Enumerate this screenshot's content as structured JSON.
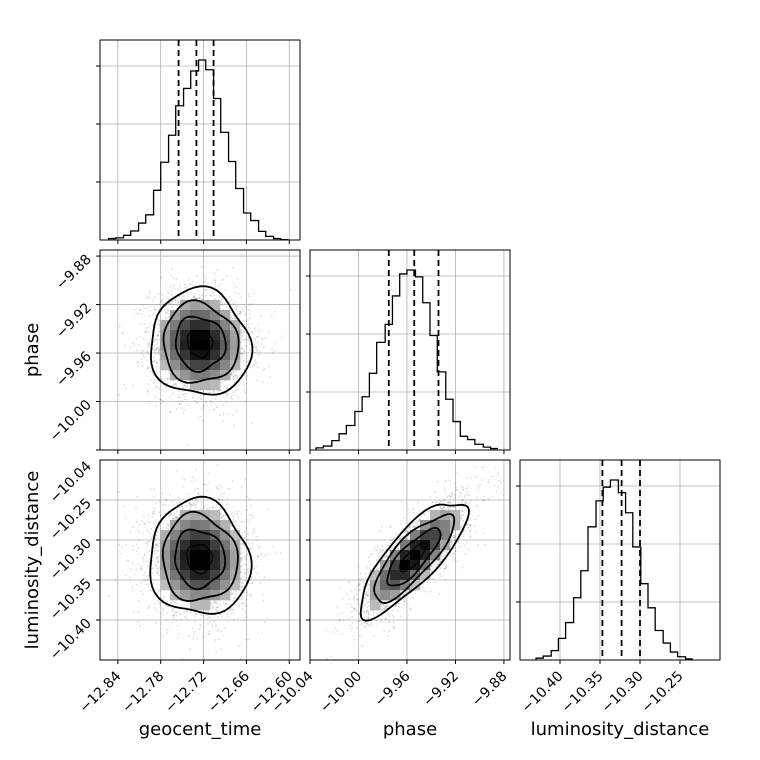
{
  "chart_data": {
    "type": "corner",
    "parameters": [
      "geocent_time",
      "phase",
      "luminosity_distance"
    ],
    "grid": true,
    "colors": {
      "line": "#000000",
      "grid": "#b0b0b0",
      "background": "#ffffff"
    },
    "ranges": {
      "geocent_time": [
        -12.865,
        -12.585
      ],
      "phase": [
        -10.04,
        -9.875
      ],
      "luminosity_distance": [
        -10.45,
        -10.2
      ]
    },
    "ticks": {
      "geocent_time": [
        -12.84,
        -12.78,
        -12.72,
        -12.66,
        -12.6
      ],
      "phase": [
        -10.04,
        -10.0,
        -9.96,
        -9.92,
        -9.88
      ],
      "luminosity_distance": [
        -10.4,
        -10.35,
        -10.3,
        -10.25
      ]
    },
    "tick_labels": {
      "geocent_time": [
        "−12.84",
        "−12.78",
        "−12.72",
        "−12.66",
        "−12.60"
      ],
      "phase": [
        "−10.04",
        "−10.00",
        "−9.96",
        "−9.92",
        "−9.88"
      ],
      "luminosity_distance": [
        "−10.40",
        "−10.35",
        "−10.30",
        "−10.25"
      ]
    },
    "ylabel_ticks": {
      "phase": [
        -10.0,
        -9.96,
        -9.92,
        -9.88
      ],
      "luminosity_distance": [
        -10.4,
        -10.35,
        -10.3,
        -10.25
      ]
    },
    "ylabel_tick_labels": {
      "phase": [
        "−10.00",
        "−9.96",
        "−9.92",
        "−9.88"
      ],
      "luminosity_distance": [
        "−10.40",
        "−10.35",
        "−10.30",
        "−10.25"
      ]
    },
    "extra_left_label": {
      "parameter": "luminosity_distance",
      "value": -10.04,
      "text": "−10.04"
    },
    "quantiles": {
      "geocent_time": [
        -12.755,
        -12.73,
        -12.706
      ],
      "phase": [
        -9.975,
        -9.954,
        -9.934
      ],
      "luminosity_distance": [
        -10.347,
        -10.323,
        -10.3
      ]
    },
    "histograms": {
      "geocent_time": {
        "bin_edges": [
          -12.853,
          -12.843,
          -12.832,
          -12.822,
          -12.811,
          -12.801,
          -12.79,
          -12.78,
          -12.769,
          -12.759,
          -12.748,
          -12.738,
          -12.727,
          -12.717,
          -12.706,
          -12.696,
          -12.685,
          -12.675,
          -12.664,
          -12.654,
          -12.643,
          -12.633,
          -12.622,
          -12.612,
          -12.601
        ],
        "counts": [
          0.008,
          0.012,
          0.026,
          0.05,
          0.094,
          0.14,
          0.276,
          0.432,
          0.582,
          0.746,
          0.842,
          0.939,
          1.0,
          0.946,
          0.786,
          0.598,
          0.436,
          0.286,
          0.15,
          0.108,
          0.048,
          0.02,
          0.008,
          0.002
        ]
      },
      "phase": {
        "bin_edges": [
          -10.035,
          -10.029,
          -10.022,
          -10.016,
          -10.01,
          -10.003,
          -9.997,
          -9.991,
          -9.985,
          -9.978,
          -9.972,
          -9.966,
          -9.96,
          -9.953,
          -9.947,
          -9.941,
          -9.935,
          -9.928,
          -9.922,
          -9.916,
          -9.91,
          -9.904,
          -9.897,
          -9.891,
          -9.885
        ],
        "counts": [
          0.012,
          0.022,
          0.052,
          0.09,
          0.136,
          0.214,
          0.296,
          0.426,
          0.598,
          0.698,
          0.856,
          0.978,
          1.0,
          0.962,
          0.818,
          0.636,
          0.434,
          0.282,
          0.158,
          0.076,
          0.058,
          0.032,
          0.016,
          0.008
        ]
      },
      "luminosity_distance": {
        "bin_edges": [
          -10.43,
          -10.421,
          -10.411,
          -10.402,
          -10.393,
          -10.383,
          -10.374,
          -10.365,
          -10.355,
          -10.346,
          -10.337,
          -10.327,
          -10.318,
          -10.309,
          -10.299,
          -10.29,
          -10.281,
          -10.271,
          -10.262,
          -10.253,
          -10.243,
          -10.234
        ],
        "counts": [
          0.01,
          0.022,
          0.052,
          0.12,
          0.208,
          0.346,
          0.496,
          0.74,
          0.884,
          0.96,
          1.0,
          0.93,
          0.818,
          0.628,
          0.424,
          0.29,
          0.164,
          0.094,
          0.044,
          0.018,
          0.006
        ]
      }
    },
    "scatter_2d": [
      {
        "x": "geocent_time",
        "y": "phase",
        "mean": [
          -12.725,
          -9.952
        ],
        "std": [
          0.035,
          0.022
        ],
        "corr": -0.05,
        "contour_sigmas": [
          0.5,
          1.0,
          1.5,
          2.0
        ]
      },
      {
        "x": "geocent_time",
        "y": "luminosity_distance",
        "mean": [
          -12.726,
          -10.323
        ],
        "std": [
          0.035,
          0.036
        ],
        "corr": -0.05,
        "contour_sigmas": [
          0.5,
          1.0,
          1.5,
          2.0
        ]
      },
      {
        "x": "phase",
        "y": "luminosity_distance",
        "mean": [
          -9.955,
          -10.322
        ],
        "std": [
          0.022,
          0.036
        ],
        "corr": 0.8,
        "contour_sigmas": [
          0.5,
          1.0,
          1.5,
          2.0
        ]
      }
    ]
  }
}
